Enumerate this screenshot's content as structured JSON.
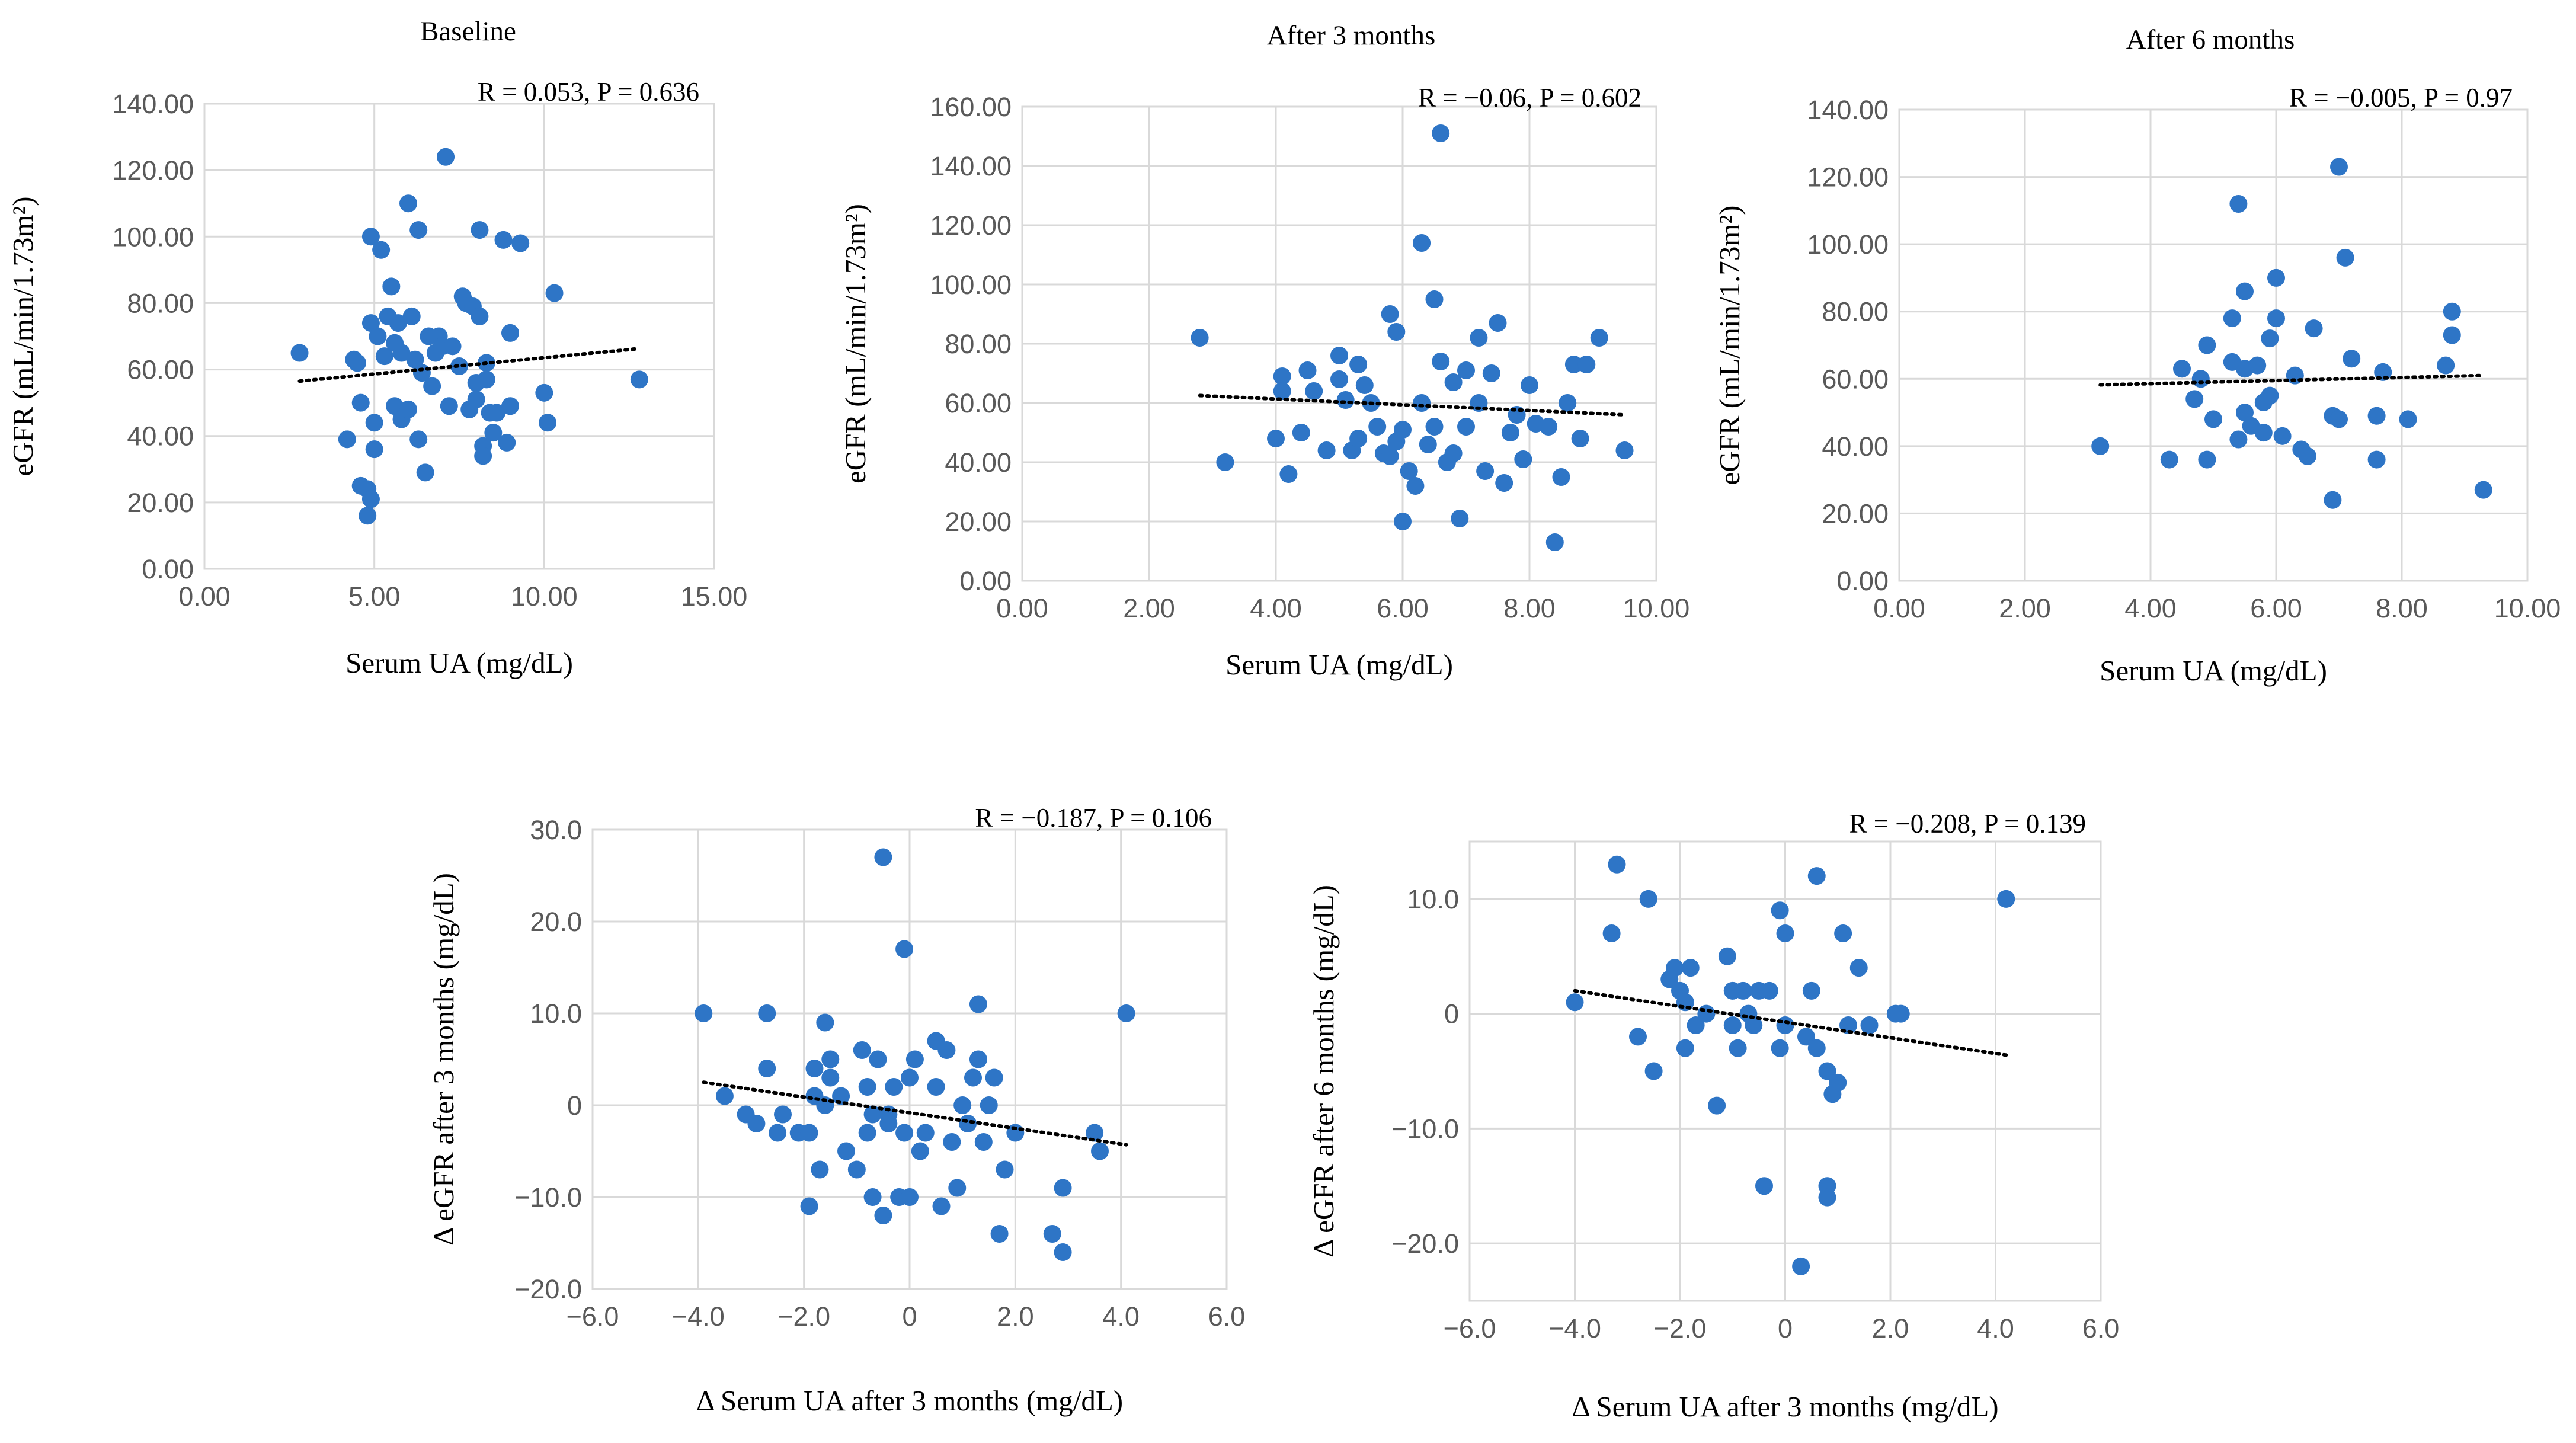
{
  "chart_data": [
    {
      "type": "scatter",
      "title": "Baseline",
      "stat_text": "R = 0.053, P = 0.636",
      "xlabel": "Serum UA (mg/dL)",
      "ylabel": "eGFR (mL/min/1.73m²)",
      "xlim": [
        0,
        15
      ],
      "ylim": [
        0,
        140
      ],
      "xticks": [
        0,
        5,
        10,
        15
      ],
      "yticks": [
        0,
        20,
        40,
        60,
        80,
        100,
        120,
        140
      ],
      "x_tick_labels": [
        "0.00",
        "5.00",
        "10.00",
        "15.00"
      ],
      "y_tick_labels": [
        "0.00",
        "20.00",
        "40.00",
        "60.00",
        "80.00",
        "100.00",
        "120.00",
        "140.00"
      ],
      "trendline": {
        "x": [
          2.8,
          12.8
        ],
        "y": [
          56.5,
          66.3
        ]
      },
      "points": [
        [
          2.8,
          65
        ],
        [
          4.2,
          39
        ],
        [
          4.4,
          63
        ],
        [
          4.5,
          62
        ],
        [
          4.6,
          25
        ],
        [
          4.6,
          50
        ],
        [
          4.8,
          24
        ],
        [
          4.8,
          16
        ],
        [
          4.9,
          74
        ],
        [
          4.9,
          100
        ],
        [
          4.9,
          21
        ],
        [
          5.0,
          36
        ],
        [
          5.0,
          44
        ],
        [
          5.1,
          70
        ],
        [
          5.2,
          96
        ],
        [
          5.3,
          64
        ],
        [
          5.4,
          76
        ],
        [
          5.5,
          85
        ],
        [
          5.6,
          68
        ],
        [
          5.6,
          49
        ],
        [
          5.7,
          74
        ],
        [
          5.8,
          65
        ],
        [
          5.8,
          45
        ],
        [
          6.0,
          48
        ],
        [
          6.0,
          110
        ],
        [
          6.1,
          76
        ],
        [
          6.2,
          63
        ],
        [
          6.3,
          102
        ],
        [
          6.3,
          39
        ],
        [
          6.4,
          59
        ],
        [
          6.5,
          29
        ],
        [
          6.6,
          70
        ],
        [
          6.7,
          55
        ],
        [
          6.8,
          65
        ],
        [
          6.9,
          70
        ],
        [
          7.0,
          67
        ],
        [
          7.1,
          124
        ],
        [
          7.2,
          49
        ],
        [
          7.3,
          67
        ],
        [
          7.5,
          61
        ],
        [
          7.6,
          82
        ],
        [
          7.7,
          80
        ],
        [
          7.8,
          48
        ],
        [
          7.9,
          79
        ],
        [
          8.0,
          56
        ],
        [
          8.0,
          51
        ],
        [
          8.1,
          76
        ],
        [
          8.1,
          102
        ],
        [
          8.2,
          37
        ],
        [
          8.2,
          34
        ],
        [
          8.3,
          57
        ],
        [
          8.3,
          62
        ],
        [
          8.4,
          47
        ],
        [
          8.5,
          41
        ],
        [
          8.6,
          47
        ],
        [
          8.8,
          99
        ],
        [
          8.9,
          38
        ],
        [
          9.0,
          49
        ],
        [
          9.3,
          98
        ],
        [
          9.0,
          71
        ],
        [
          10.0,
          53
        ],
        [
          10.1,
          44
        ],
        [
          10.3,
          83
        ],
        [
          12.8,
          57
        ]
      ]
    },
    {
      "type": "scatter",
      "title": "After 3 months",
      "stat_text": "R = −0.06, P = 0.602",
      "xlabel": "Serum UA (mg/dL)",
      "ylabel": "eGFR (mL/min/1.73m²)",
      "xlim": [
        0,
        10
      ],
      "ylim": [
        0,
        160
      ],
      "xticks": [
        0,
        2,
        4,
        6,
        8,
        10
      ],
      "yticks": [
        0,
        20,
        40,
        60,
        80,
        100,
        120,
        140,
        160
      ],
      "x_tick_labels": [
        "0.00",
        "2.00",
        "4.00",
        "6.00",
        "8.00",
        "10.00"
      ],
      "y_tick_labels": [
        "0.00",
        "20.00",
        "40.00",
        "60.00",
        "80.00",
        "100.00",
        "120.00",
        "140.00",
        "160.00"
      ],
      "trendline": {
        "x": [
          2.8,
          9.5
        ],
        "y": [
          62.5,
          56.0
        ]
      },
      "points": [
        [
          2.8,
          82
        ],
        [
          3.2,
          40
        ],
        [
          4.0,
          48
        ],
        [
          4.1,
          69
        ],
        [
          4.1,
          64
        ],
        [
          4.2,
          36
        ],
        [
          4.4,
          50
        ],
        [
          4.5,
          71
        ],
        [
          4.6,
          64
        ],
        [
          4.8,
          44
        ],
        [
          5.0,
          76
        ],
        [
          5.0,
          68
        ],
        [
          5.1,
          61
        ],
        [
          5.2,
          44
        ],
        [
          5.3,
          73
        ],
        [
          5.3,
          48
        ],
        [
          5.4,
          66
        ],
        [
          5.5,
          60
        ],
        [
          5.6,
          52
        ],
        [
          5.7,
          43
        ],
        [
          5.8,
          90
        ],
        [
          5.8,
          42
        ],
        [
          5.9,
          84
        ],
        [
          5.9,
          47
        ],
        [
          6.0,
          20
        ],
        [
          6.0,
          51
        ],
        [
          6.1,
          37
        ],
        [
          6.2,
          32
        ],
        [
          6.3,
          114
        ],
        [
          6.3,
          60
        ],
        [
          6.4,
          46
        ],
        [
          6.5,
          95
        ],
        [
          6.5,
          52
        ],
        [
          6.6,
          151
        ],
        [
          6.6,
          74
        ],
        [
          6.7,
          40
        ],
        [
          6.8,
          67
        ],
        [
          6.8,
          43
        ],
        [
          6.9,
          21
        ],
        [
          7.0,
          71
        ],
        [
          7.0,
          52
        ],
        [
          7.2,
          60
        ],
        [
          7.2,
          82
        ],
        [
          7.3,
          37
        ],
        [
          7.4,
          70
        ],
        [
          7.5,
          87
        ],
        [
          7.6,
          33
        ],
        [
          7.7,
          50
        ],
        [
          7.8,
          56
        ],
        [
          7.9,
          41
        ],
        [
          8.0,
          66
        ],
        [
          8.1,
          53
        ],
        [
          8.3,
          52
        ],
        [
          8.4,
          13
        ],
        [
          8.5,
          35
        ],
        [
          8.6,
          60
        ],
        [
          8.7,
          73
        ],
        [
          8.8,
          48
        ],
        [
          8.9,
          73
        ],
        [
          9.1,
          82
        ],
        [
          9.5,
          44
        ]
      ]
    },
    {
      "type": "scatter",
      "title": "After 6 months",
      "stat_text": "R = −0.005, P = 0.97",
      "xlabel": "Serum UA (mg/dL)",
      "ylabel": "eGFR (mL/min/1.73m²)",
      "xlim": [
        0,
        10
      ],
      "ylim": [
        0,
        140
      ],
      "xticks": [
        0,
        2,
        4,
        6,
        8,
        10
      ],
      "yticks": [
        0,
        20,
        40,
        60,
        80,
        100,
        120,
        140
      ],
      "x_tick_labels": [
        "0.00",
        "2.00",
        "4.00",
        "6.00",
        "8.00",
        "10.00"
      ],
      "y_tick_labels": [
        "0.00",
        "20.00",
        "40.00",
        "60.00",
        "80.00",
        "100.00",
        "120.00",
        "140.00"
      ],
      "trendline": {
        "x": [
          3.2,
          9.3
        ],
        "y": [
          58.2,
          61.0
        ]
      },
      "points": [
        [
          3.2,
          40
        ],
        [
          4.3,
          36
        ],
        [
          4.5,
          63
        ],
        [
          4.7,
          54
        ],
        [
          4.8,
          60
        ],
        [
          4.9,
          36
        ],
        [
          4.9,
          70
        ],
        [
          5.0,
          48
        ],
        [
          5.3,
          65
        ],
        [
          5.3,
          78
        ],
        [
          5.4,
          112
        ],
        [
          5.4,
          42
        ],
        [
          5.5,
          63
        ],
        [
          5.5,
          50
        ],
        [
          5.5,
          86
        ],
        [
          5.6,
          46
        ],
        [
          5.7,
          64
        ],
        [
          5.8,
          53
        ],
        [
          5.8,
          44
        ],
        [
          5.9,
          72
        ],
        [
          5.9,
          55
        ],
        [
          6.0,
          90
        ],
        [
          6.0,
          78
        ],
        [
          6.1,
          43
        ],
        [
          6.3,
          61
        ],
        [
          6.4,
          39
        ],
        [
          6.5,
          37
        ],
        [
          6.6,
          75
        ],
        [
          6.9,
          24
        ],
        [
          6.9,
          49
        ],
        [
          7.0,
          123
        ],
        [
          7.0,
          48
        ],
        [
          7.1,
          96
        ],
        [
          7.2,
          66
        ],
        [
          7.6,
          36
        ],
        [
          7.6,
          49
        ],
        [
          7.7,
          62
        ],
        [
          8.1,
          48
        ],
        [
          8.7,
          64
        ],
        [
          8.8,
          73
        ],
        [
          8.8,
          80
        ],
        [
          9.3,
          27
        ]
      ]
    },
    {
      "type": "scatter",
      "title": "",
      "stat_text": "R = −0.187, P = 0.106",
      "xlabel": "Δ Serum UA after 3 months (mg/dL)",
      "ylabel": "Δ eGFR after 3 months (mg/dL)",
      "xlim": [
        -6,
        6
      ],
      "ylim": [
        -20,
        30
      ],
      "xticks": [
        -6,
        -4,
        -2,
        0,
        2,
        4,
        6
      ],
      "yticks": [
        -20,
        -10,
        0,
        10,
        20,
        30
      ],
      "x_tick_labels": [
        "−6.0",
        "−4.0",
        "−2.0",
        "0",
        "2.0",
        "4.0",
        "6.0"
      ],
      "y_tick_labels": [
        "−20.0",
        "−10.0",
        "0",
        "10.0",
        "20.0",
        "30.0"
      ],
      "trendline": {
        "x": [
          -3.9,
          4.1
        ],
        "y": [
          2.5,
          -4.3
        ]
      },
      "points": [
        [
          -3.9,
          10
        ],
        [
          -3.5,
          1
        ],
        [
          -3.1,
          -1
        ],
        [
          -2.9,
          -2
        ],
        [
          -2.7,
          4
        ],
        [
          -2.7,
          10
        ],
        [
          -2.5,
          -3
        ],
        [
          -2.4,
          -1
        ],
        [
          -2.1,
          -3
        ],
        [
          -1.9,
          -11
        ],
        [
          -1.9,
          -3
        ],
        [
          -1.8,
          4
        ],
        [
          -1.8,
          1
        ],
        [
          -1.7,
          -7
        ],
        [
          -1.6,
          9
        ],
        [
          -1.6,
          0
        ],
        [
          -1.5,
          5
        ],
        [
          -1.5,
          3
        ],
        [
          -1.3,
          1
        ],
        [
          -1.2,
          -5
        ],
        [
          -1.0,
          -7
        ],
        [
          -0.9,
          6
        ],
        [
          -0.8,
          2
        ],
        [
          -0.8,
          -3
        ],
        [
          -0.7,
          -10
        ],
        [
          -0.7,
          -1
        ],
        [
          -0.6,
          5
        ],
        [
          -0.5,
          -12
        ],
        [
          -0.5,
          27
        ],
        [
          -0.4,
          -2
        ],
        [
          -0.4,
          -1
        ],
        [
          -0.3,
          2
        ],
        [
          -0.2,
          -10
        ],
        [
          -0.1,
          17
        ],
        [
          -0.1,
          -3
        ],
        [
          0.0,
          3
        ],
        [
          0.0,
          -10
        ],
        [
          0.1,
          5
        ],
        [
          0.2,
          -5
        ],
        [
          0.3,
          -3
        ],
        [
          0.5,
          7
        ],
        [
          0.5,
          2
        ],
        [
          0.6,
          -11
        ],
        [
          0.7,
          6
        ],
        [
          0.8,
          -4
        ],
        [
          0.9,
          -9
        ],
        [
          1.0,
          0
        ],
        [
          1.1,
          -2
        ],
        [
          1.2,
          3
        ],
        [
          1.3,
          11
        ],
        [
          1.3,
          5
        ],
        [
          1.4,
          -4
        ],
        [
          1.5,
          0
        ],
        [
          1.6,
          3
        ],
        [
          1.7,
          -14
        ],
        [
          1.8,
          -7
        ],
        [
          2.0,
          -3
        ],
        [
          2.7,
          -14
        ],
        [
          2.9,
          -16
        ],
        [
          2.9,
          -9
        ],
        [
          3.5,
          -3
        ],
        [
          3.6,
          -5
        ],
        [
          4.1,
          10
        ]
      ]
    },
    {
      "type": "scatter",
      "title": "",
      "stat_text": "R = −0.208, P = 0.139",
      "xlabel": "Δ Serum UA after 3 months (mg/dL)",
      "ylabel": "Δ eGFR after 6 months (mg/dL)",
      "xlim": [
        -6,
        6
      ],
      "ylim": [
        -25,
        15
      ],
      "xticks": [
        -6,
        -4,
        -2,
        0,
        2,
        4,
        6
      ],
      "yticks": [
        -20,
        -10,
        0,
        10
      ],
      "x_tick_labels": [
        "−6.0",
        "−4.0",
        "−2.0",
        "0",
        "2.0",
        "4.0",
        "6.0"
      ],
      "y_tick_labels": [
        "−20.0",
        "−10.0",
        "0",
        "10.0"
      ],
      "trendline": {
        "x": [
          -4.0,
          4.2
        ],
        "y": [
          2.0,
          -3.6
        ]
      },
      "points": [
        [
          -4.0,
          1
        ],
        [
          -3.3,
          7
        ],
        [
          -3.2,
          13
        ],
        [
          -2.8,
          -2
        ],
        [
          -2.6,
          10
        ],
        [
          -2.5,
          -5
        ],
        [
          -2.2,
          3
        ],
        [
          -2.1,
          4
        ],
        [
          -2.0,
          2
        ],
        [
          -1.9,
          -3
        ],
        [
          -1.9,
          1
        ],
        [
          -1.8,
          4
        ],
        [
          -1.7,
          -1
        ],
        [
          -1.5,
          0
        ],
        [
          -1.3,
          -8
        ],
        [
          -1.1,
          5
        ],
        [
          -1.0,
          2
        ],
        [
          -1.0,
          -1
        ],
        [
          -0.9,
          -3
        ],
        [
          -0.8,
          2
        ],
        [
          -0.7,
          0
        ],
        [
          -0.6,
          -1
        ],
        [
          -0.5,
          2
        ],
        [
          -0.4,
          -15
        ],
        [
          -0.3,
          2
        ],
        [
          -0.1,
          9
        ],
        [
          -0.1,
          -3
        ],
        [
          0.0,
          7
        ],
        [
          0.0,
          -1
        ],
        [
          0.3,
          -22
        ],
        [
          0.4,
          -2
        ],
        [
          0.5,
          2
        ],
        [
          0.6,
          -3
        ],
        [
          0.6,
          12
        ],
        [
          0.8,
          -5
        ],
        [
          0.8,
          -15
        ],
        [
          0.8,
          -16
        ],
        [
          0.9,
          -7
        ],
        [
          1.0,
          -6
        ],
        [
          1.1,
          7
        ],
        [
          1.2,
          -1
        ],
        [
          1.4,
          4
        ],
        [
          1.6,
          -1
        ],
        [
          2.1,
          0
        ],
        [
          2.2,
          0
        ],
        [
          4.2,
          10
        ]
      ]
    }
  ]
}
